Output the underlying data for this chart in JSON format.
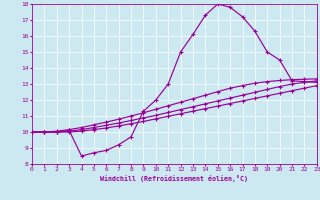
{
  "background_color": "#cce8f0",
  "line_color": "#990099",
  "xlabel": "Windchill (Refroidissement éolien,°C)",
  "xmin": 0,
  "xmax": 23,
  "ymin": 8,
  "ymax": 18,
  "line1_y": [
    10.0,
    10.0,
    10.0,
    10.1,
    8.5,
    8.7,
    8.85,
    9.2,
    9.7,
    11.3,
    12.0,
    13.0,
    15.0,
    16.1,
    17.3,
    18.0,
    17.8,
    17.2,
    16.3,
    15.0,
    14.5,
    13.2,
    13.15,
    13.1
  ],
  "line2_y": [
    10.0,
    10.0,
    10.0,
    10.0,
    10.05,
    10.15,
    10.25,
    10.38,
    10.52,
    10.66,
    10.82,
    10.98,
    11.14,
    11.3,
    11.46,
    11.62,
    11.78,
    11.94,
    12.1,
    12.26,
    12.42,
    12.58,
    12.74,
    12.9
  ],
  "line3_y": [
    10.0,
    10.0,
    10.0,
    10.05,
    10.15,
    10.28,
    10.42,
    10.56,
    10.72,
    10.88,
    11.04,
    11.22,
    11.4,
    11.58,
    11.76,
    11.94,
    12.12,
    12.3,
    12.48,
    12.66,
    12.84,
    13.0,
    13.1,
    13.2
  ],
  "line4_y": [
    10.0,
    10.0,
    10.05,
    10.15,
    10.28,
    10.45,
    10.62,
    10.8,
    11.0,
    11.2,
    11.42,
    11.64,
    11.86,
    12.08,
    12.3,
    12.52,
    12.74,
    12.9,
    13.05,
    13.15,
    13.22,
    13.27,
    13.3,
    13.32
  ]
}
